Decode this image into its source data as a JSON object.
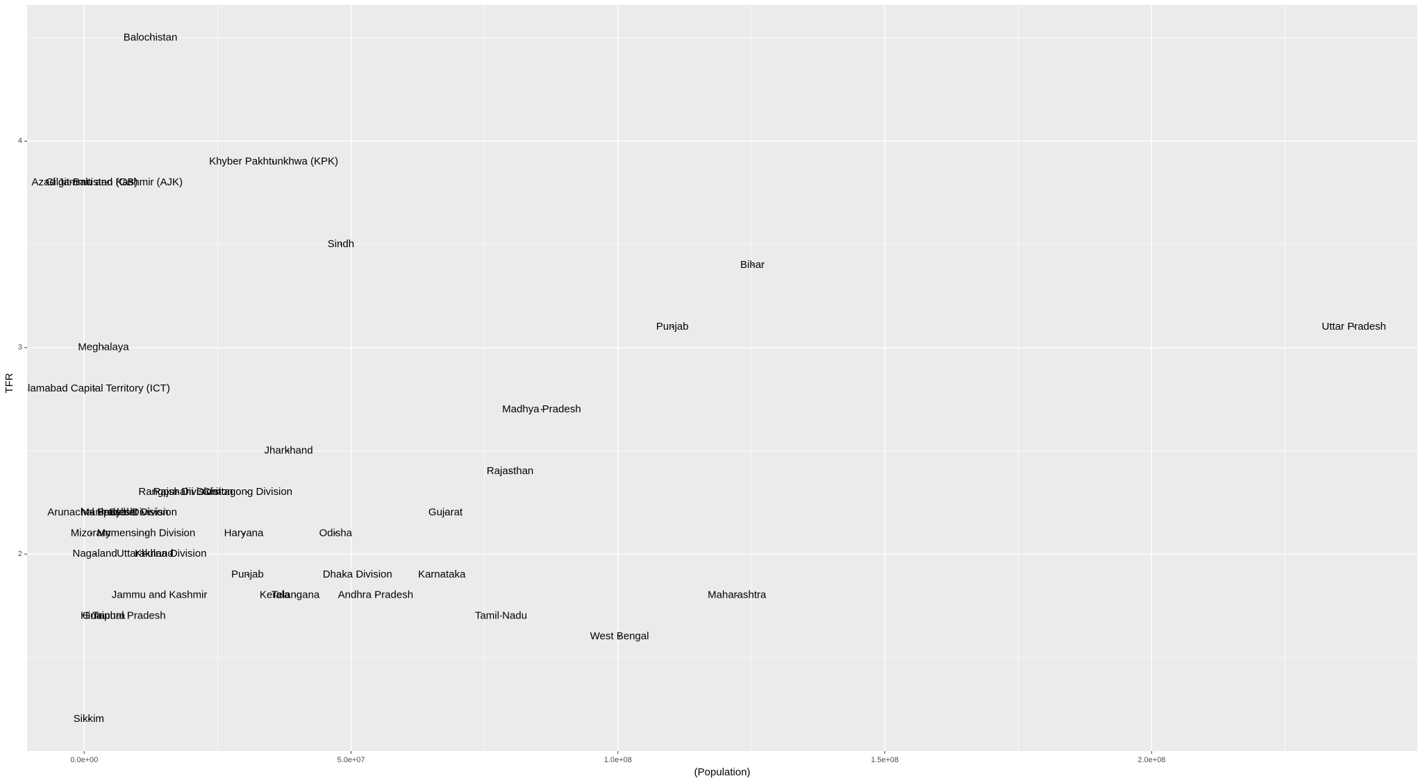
{
  "chart_data": {
    "type": "scatter",
    "x_label": "(Population)",
    "y_label": "TFR",
    "labels": [
      "Balochistan",
      "Khyber Pakhtunkhwa (KPK)",
      "Azad Jammu and Kashmir (AJK)",
      "Gilgit-Baltistan (GB)",
      "Sindh",
      "Bihar",
      "Punjab",
      "Uttar Pradesh",
      "Meghalaya",
      "Islamabad Capital Territory (ICT)",
      "Madhya Pradesh",
      "Jharkhand",
      "Rajasthan",
      "Rangpur Division",
      "Rajshahi Division",
      "Chittagong Division",
      "Arunachal Pradesh",
      "Manipur",
      "Barisal Division",
      "Sylhet Division",
      "Gujarat",
      "Mizoram",
      "Mymensingh Division",
      "Haryana",
      "Odisha",
      "Nagaland",
      "Uttarakhand",
      "Khulna Division",
      "Punjab",
      "Dhaka Division",
      "Karnataka",
      "Jammu and Kashmir",
      "Kerala",
      "Telangana",
      "Andhra Pradesh",
      "Maharashtra",
      "Goa",
      "Tripura",
      "Himachal Pradesh",
      "Tamil Nadu",
      "West Bengal",
      "Sikkim"
    ],
    "x": [
      12400000,
      35500000,
      4300000,
      1400000,
      48100000,
      125200000,
      110200000,
      237900000,
      3600000,
      2000000,
      85700000,
      38300000,
      79800000,
      17600000,
      20400000,
      30600000,
      1400000,
      2900000,
      9100000,
      11000000,
      67700000,
      1200000,
      11600000,
      29900000,
      47100000,
      2000000,
      11400000,
      16200000,
      30600000,
      51200000,
      67000000,
      14100000,
      35700000,
      39600000,
      54600000,
      122300000,
      1500000,
      4600000,
      7300000,
      78100000,
      100300000,
      850000
    ],
    "values": [
      4.5,
      3.9,
      3.8,
      3.8,
      3.5,
      3.4,
      3.1,
      3.1,
      3.0,
      2.8,
      2.7,
      2.5,
      2.4,
      2.3,
      2.3,
      2.3,
      2.2,
      2.2,
      2.2,
      2.2,
      2.2,
      2.1,
      2.1,
      2.1,
      2.1,
      2.0,
      2.0,
      2.0,
      1.9,
      1.9,
      1.9,
      1.8,
      1.8,
      1.8,
      1.8,
      1.8,
      1.7,
      1.7,
      1.7,
      1.7,
      1.6,
      1.2
    ],
    "color": "#000000",
    "xlim": [
      -10700000,
      249800000
    ],
    "xticks": [
      {
        "value": 0,
        "label": "0.0e+00"
      },
      {
        "value": 50000000,
        "label": "5.0e+07"
      },
      {
        "value": 100000000,
        "label": "1.0e+08"
      },
      {
        "value": 150000000,
        "label": "1.5e+08"
      },
      {
        "value": 200000000,
        "label": "2.0e+08"
      }
    ],
    "ylim": [
      1.046,
      4.66
    ],
    "yticks": [
      2,
      3,
      4
    ],
    "grid": true
  }
}
